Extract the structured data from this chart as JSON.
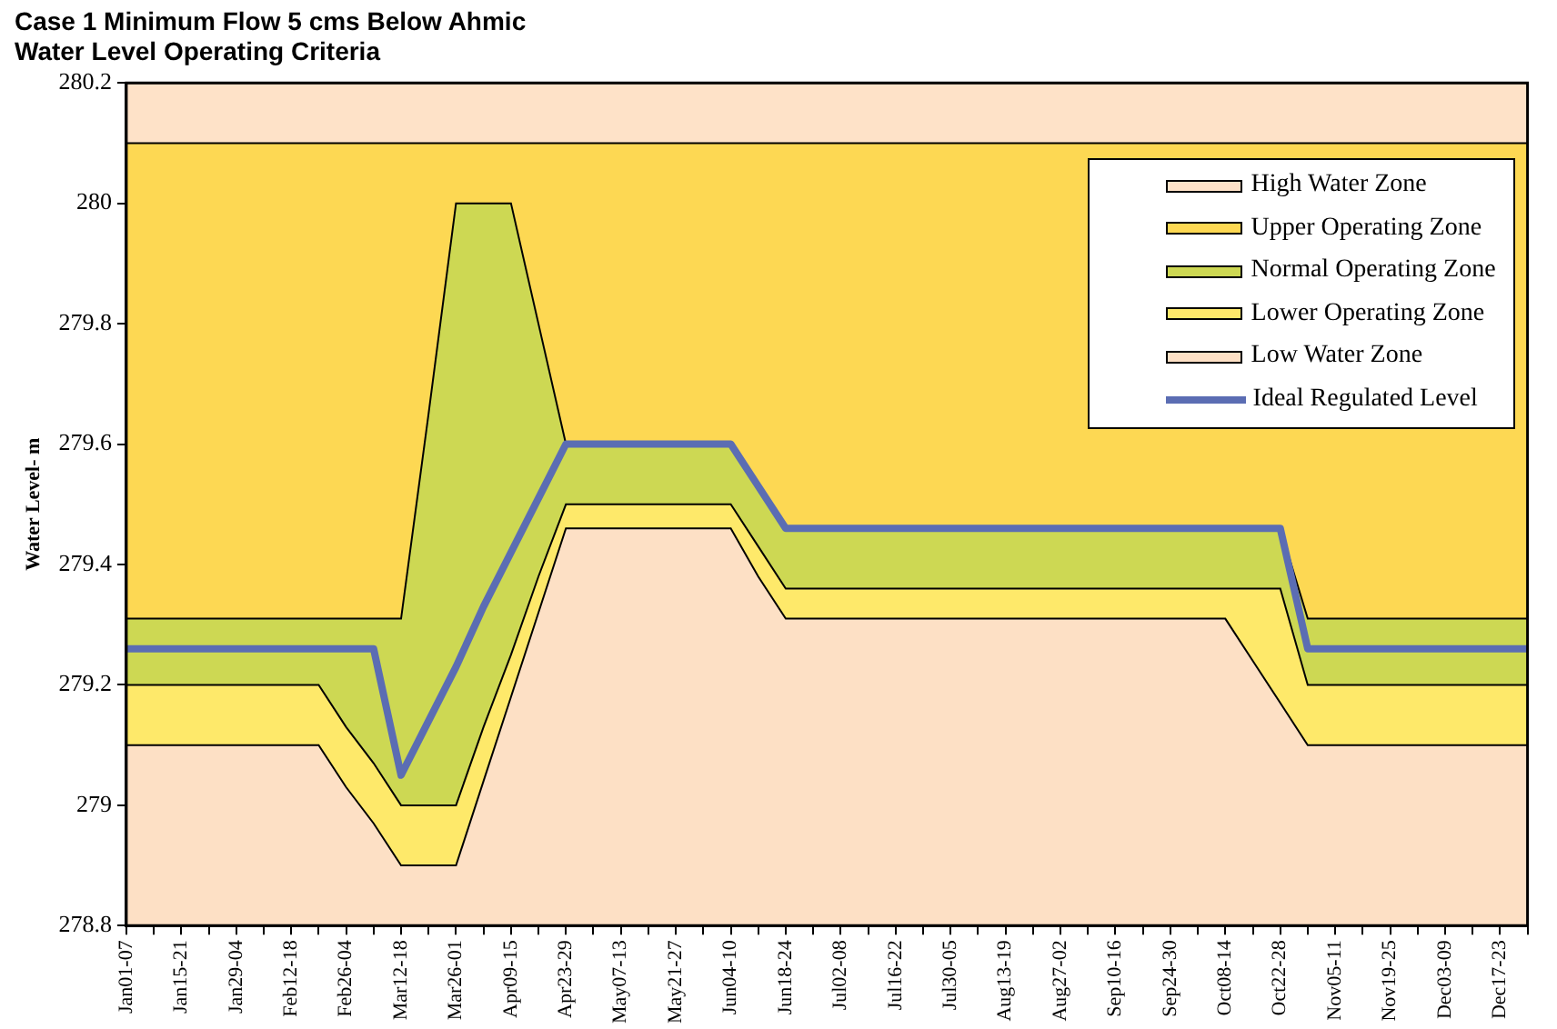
{
  "chart_data": {
    "type": "area",
    "title": "Case 1 Minimum Flow 5 cms Below Ahmic\nWater Level Operating Criteria",
    "ylabel": "Water Level- m",
    "legend": "top right",
    "grid": false,
    "marker": "none",
    "ylim": [
      278.8,
      280.2
    ],
    "yticks": [
      278.8,
      279,
      279.2,
      279.4,
      279.6,
      279.8,
      280,
      280.2
    ],
    "categories": [
      "Jan01-07",
      null,
      "Jan15-21",
      null,
      "Jan29-04",
      null,
      "Feb12-18",
      null,
      "Feb26-04",
      null,
      "Mar12-18",
      null,
      "Mar26-01",
      null,
      "Apr09-15",
      null,
      "Apr23-29",
      null,
      "May07-13",
      null,
      "May21-27",
      null,
      "Jun04-10",
      null,
      "Jun18-24",
      null,
      "Jul02-08",
      null,
      "Jul16-22",
      null,
      "Jul30-05",
      null,
      "Aug13-19",
      null,
      "Aug27-02",
      null,
      "Sep10-16",
      null,
      "Sep24-30",
      null,
      "Oct08-14",
      null,
      "Oct22-28",
      null,
      "Nov05-11",
      null,
      "Nov19-25",
      null,
      "Dec03-09",
      null,
      "Dec17-23",
      null
    ],
    "series": [
      {
        "name": "Ideal Regulated Level",
        "type": "line",
        "color": "#5b6db3",
        "values": [
          279.26,
          279.26,
          279.26,
          279.26,
          279.26,
          279.26,
          279.26,
          279.26,
          279.26,
          279.26,
          279.05,
          279.14,
          279.23,
          279.33,
          279.42,
          279.51,
          279.6,
          279.6,
          279.6,
          279.6,
          279.6,
          279.6,
          279.6,
          279.53,
          279.46,
          279.46,
          279.46,
          279.46,
          279.46,
          279.46,
          279.46,
          279.46,
          279.46,
          279.46,
          279.46,
          279.46,
          279.46,
          279.46,
          279.46,
          279.46,
          279.46,
          279.46,
          279.46,
          279.26,
          279.26,
          279.26,
          279.26,
          279.26,
          279.26,
          279.26,
          279.26,
          279.26
        ]
      },
      {
        "name": "Low Water Zone",
        "color": "#fde0c5",
        "values": [
          279.1,
          279.1,
          279.1,
          279.1,
          279.1,
          279.1,
          279.1,
          279.1,
          279.03,
          278.97,
          278.9,
          278.9,
          278.9,
          279.04,
          279.18,
          279.32,
          279.46,
          279.46,
          279.46,
          279.46,
          279.46,
          279.46,
          279.46,
          279.38,
          279.31,
          279.31,
          279.31,
          279.31,
          279.31,
          279.31,
          279.31,
          279.31,
          279.31,
          279.31,
          279.31,
          279.31,
          279.31,
          279.31,
          279.31,
          279.31,
          279.31,
          279.24,
          279.17,
          279.1,
          279.1,
          279.1,
          279.1,
          279.1,
          279.1,
          279.1,
          279.1,
          279.1
        ]
      },
      {
        "name": "Lower Operating Zone",
        "color": "#fee96a",
        "values": [
          279.2,
          279.2,
          279.2,
          279.2,
          279.2,
          279.2,
          279.2,
          279.2,
          279.13,
          279.07,
          279.0,
          279.0,
          279.0,
          279.13,
          279.25,
          279.38,
          279.5,
          279.5,
          279.5,
          279.5,
          279.5,
          279.5,
          279.5,
          279.43,
          279.36,
          279.36,
          279.36,
          279.36,
          279.36,
          279.36,
          279.36,
          279.36,
          279.36,
          279.36,
          279.36,
          279.36,
          279.36,
          279.36,
          279.36,
          279.36,
          279.36,
          279.36,
          279.36,
          279.2,
          279.2,
          279.2,
          279.2,
          279.2,
          279.2,
          279.2,
          279.2,
          279.2
        ]
      },
      {
        "name": "Normal Operating Zone",
        "color": "#cdd853",
        "values": [
          279.31,
          279.31,
          279.31,
          279.31,
          279.31,
          279.31,
          279.31,
          279.31,
          279.31,
          279.31,
          279.31,
          279.65,
          280.0,
          280.0,
          280.0,
          279.8,
          279.6,
          279.6,
          279.6,
          279.6,
          279.6,
          279.6,
          279.6,
          279.53,
          279.46,
          279.46,
          279.46,
          279.46,
          279.46,
          279.46,
          279.46,
          279.46,
          279.46,
          279.46,
          279.46,
          279.46,
          279.46,
          279.46,
          279.46,
          279.46,
          279.46,
          279.46,
          279.46,
          279.31,
          279.31,
          279.31,
          279.31,
          279.31,
          279.31,
          279.31,
          279.31,
          279.31
        ]
      },
      {
        "name": "Upper Operating Zone",
        "color": "#fdd853",
        "values": [
          280.1,
          280.1,
          280.1,
          280.1,
          280.1,
          280.1,
          280.1,
          280.1,
          280.1,
          280.1,
          280.1,
          280.1,
          280.1,
          280.1,
          280.1,
          280.1,
          280.1,
          280.1,
          280.1,
          280.1,
          280.1,
          280.1,
          280.1,
          280.1,
          280.1,
          280.1,
          280.1,
          280.1,
          280.1,
          280.1,
          280.1,
          280.1,
          280.1,
          280.1,
          280.1,
          280.1,
          280.1,
          280.1,
          280.1,
          280.1,
          280.1,
          280.1,
          280.1,
          280.1,
          280.1,
          280.1,
          280.1,
          280.1,
          280.1,
          280.1,
          280.1,
          280.1
        ]
      },
      {
        "name": "High Water Zone",
        "color": "#fee2c8",
        "values": [
          280.2,
          280.2,
          280.2,
          280.2,
          280.2,
          280.2,
          280.2,
          280.2,
          280.2,
          280.2,
          280.2,
          280.2,
          280.2,
          280.2,
          280.2,
          280.2,
          280.2,
          280.2,
          280.2,
          280.2,
          280.2,
          280.2,
          280.2,
          280.2,
          280.2,
          280.2,
          280.2,
          280.2,
          280.2,
          280.2,
          280.2,
          280.2,
          280.2,
          280.2,
          280.2,
          280.2,
          280.2,
          280.2,
          280.2,
          280.2,
          280.2,
          280.2,
          280.2,
          280.2,
          280.2,
          280.2,
          280.2,
          280.2,
          280.2,
          280.2,
          280.2,
          280.2
        ]
      }
    ]
  }
}
